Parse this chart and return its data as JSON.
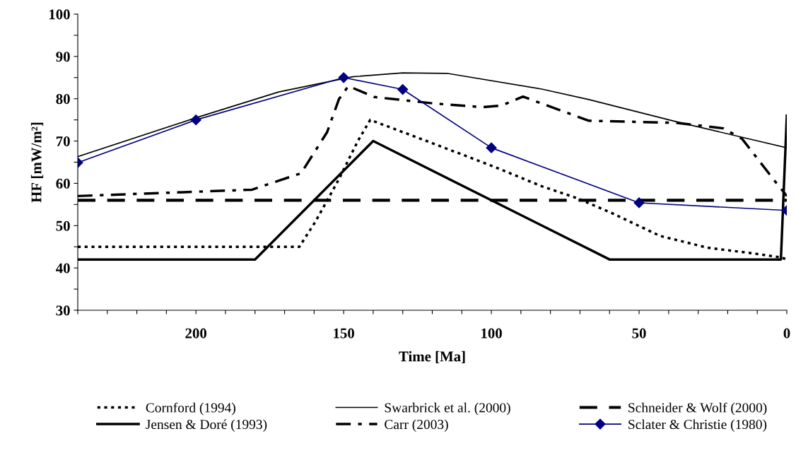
{
  "chart_data": {
    "type": "line",
    "xlabel": "Time [Ma]",
    "ylabel": "HF [mW/m²]",
    "xlim": [
      240,
      0
    ],
    "ylim": [
      30,
      100
    ],
    "xticks": [
      {
        "value": 240,
        "label": null
      },
      {
        "value": 230,
        "label": null
      },
      {
        "value": 220,
        "label": null
      },
      {
        "value": 210,
        "label": null
      },
      200,
      {
        "value": 190,
        "label": null
      },
      {
        "value": 180,
        "label": null
      },
      {
        "value": 170,
        "label": null
      },
      {
        "value": 160,
        "label": null
      },
      150,
      {
        "value": 140,
        "label": null
      },
      {
        "value": 130,
        "label": null
      },
      {
        "value": 120,
        "label": null
      },
      {
        "value": 110,
        "label": null
      },
      100,
      {
        "value": 90,
        "label": null
      },
      {
        "value": 80,
        "label": null
      },
      {
        "value": 70,
        "label": null
      },
      {
        "value": 60,
        "label": null
      },
      50,
      {
        "value": 40,
        "label": null
      },
      {
        "value": 30,
        "label": null
      },
      {
        "value": 20,
        "label": null
      },
      {
        "value": 10,
        "label": null
      },
      0
    ],
    "yticks": [
      30,
      {
        "value": 35,
        "label": null
      },
      40,
      {
        "value": 45,
        "label": null
      },
      50,
      {
        "value": 55,
        "label": null
      },
      60,
      {
        "value": 65,
        "label": null
      },
      70,
      {
        "value": 75,
        "label": null
      },
      80,
      {
        "value": 85,
        "label": null
      },
      90,
      {
        "value": 95,
        "label": null
      },
      100
    ],
    "grid": false,
    "legend": "bottom",
    "series": [
      {
        "name": "Cornford (1994)",
        "color": "#000000",
        "line_style": "dotted",
        "marker": "none",
        "x": [
          240,
          165,
          159.5,
          151.6,
          145.2,
          141,
          120,
          98.6,
          82.9,
          71,
          59,
          43,
          27,
          11,
          2,
          0
        ],
        "values": [
          45,
          45,
          51,
          61,
          70,
          75,
          69.5,
          63.8,
          59.3,
          56.5,
          52.9,
          47.6,
          44.8,
          43.4,
          42.5,
          42
        ]
      },
      {
        "name": "Swarbrick et al. (2000)",
        "color": "#000000",
        "line_style": "solid",
        "marker": "none",
        "x": [
          240,
          200,
          172,
          147,
          130,
          115,
          83,
          67,
          37,
          0
        ],
        "values": [
          66.3,
          75.5,
          81.6,
          85.2,
          86.1,
          86,
          82.3,
          79.8,
          74.5,
          68.4
        ]
      },
      {
        "name": "Schneider & Wolf (2000)",
        "color": "#000000",
        "line_style": "dashed",
        "marker": "none",
        "x": [
          240,
          0
        ],
        "values": [
          56,
          56
        ]
      },
      {
        "name": "Jensen & Doré (1993)",
        "color": "#000000",
        "line_style": "solid",
        "marker": "none",
        "x": [
          240,
          180,
          140,
          60,
          2,
          0
        ],
        "values": [
          42,
          42,
          70,
          42,
          42,
          76
        ]
      },
      {
        "name": "Carr (2003)",
        "color": "#000000",
        "line_style": "dashdot",
        "marker": "none",
        "x": [
          240,
          181,
          164.4,
          155.6,
          151.6,
          148.4,
          139.6,
          119.6,
          102.9,
          96.5,
          89.3,
          67,
          37.4,
          21.5,
          15.1,
          3.9,
          0
        ],
        "values": [
          57,
          58.5,
          62.4,
          72.1,
          79.9,
          83,
          80.4,
          78.9,
          78,
          78.4,
          80.5,
          74.8,
          74.3,
          73,
          70.5,
          60.4,
          57
        ]
      },
      {
        "name": "Sclater & Christie (1980)",
        "color": "#000080",
        "line_style": "solid",
        "marker": "diamond",
        "x": [
          240,
          200,
          150,
          130,
          100,
          50,
          0
        ],
        "values": [
          64.9,
          75,
          85,
          82.2,
          68.4,
          55.4,
          53.6
        ]
      }
    ]
  }
}
